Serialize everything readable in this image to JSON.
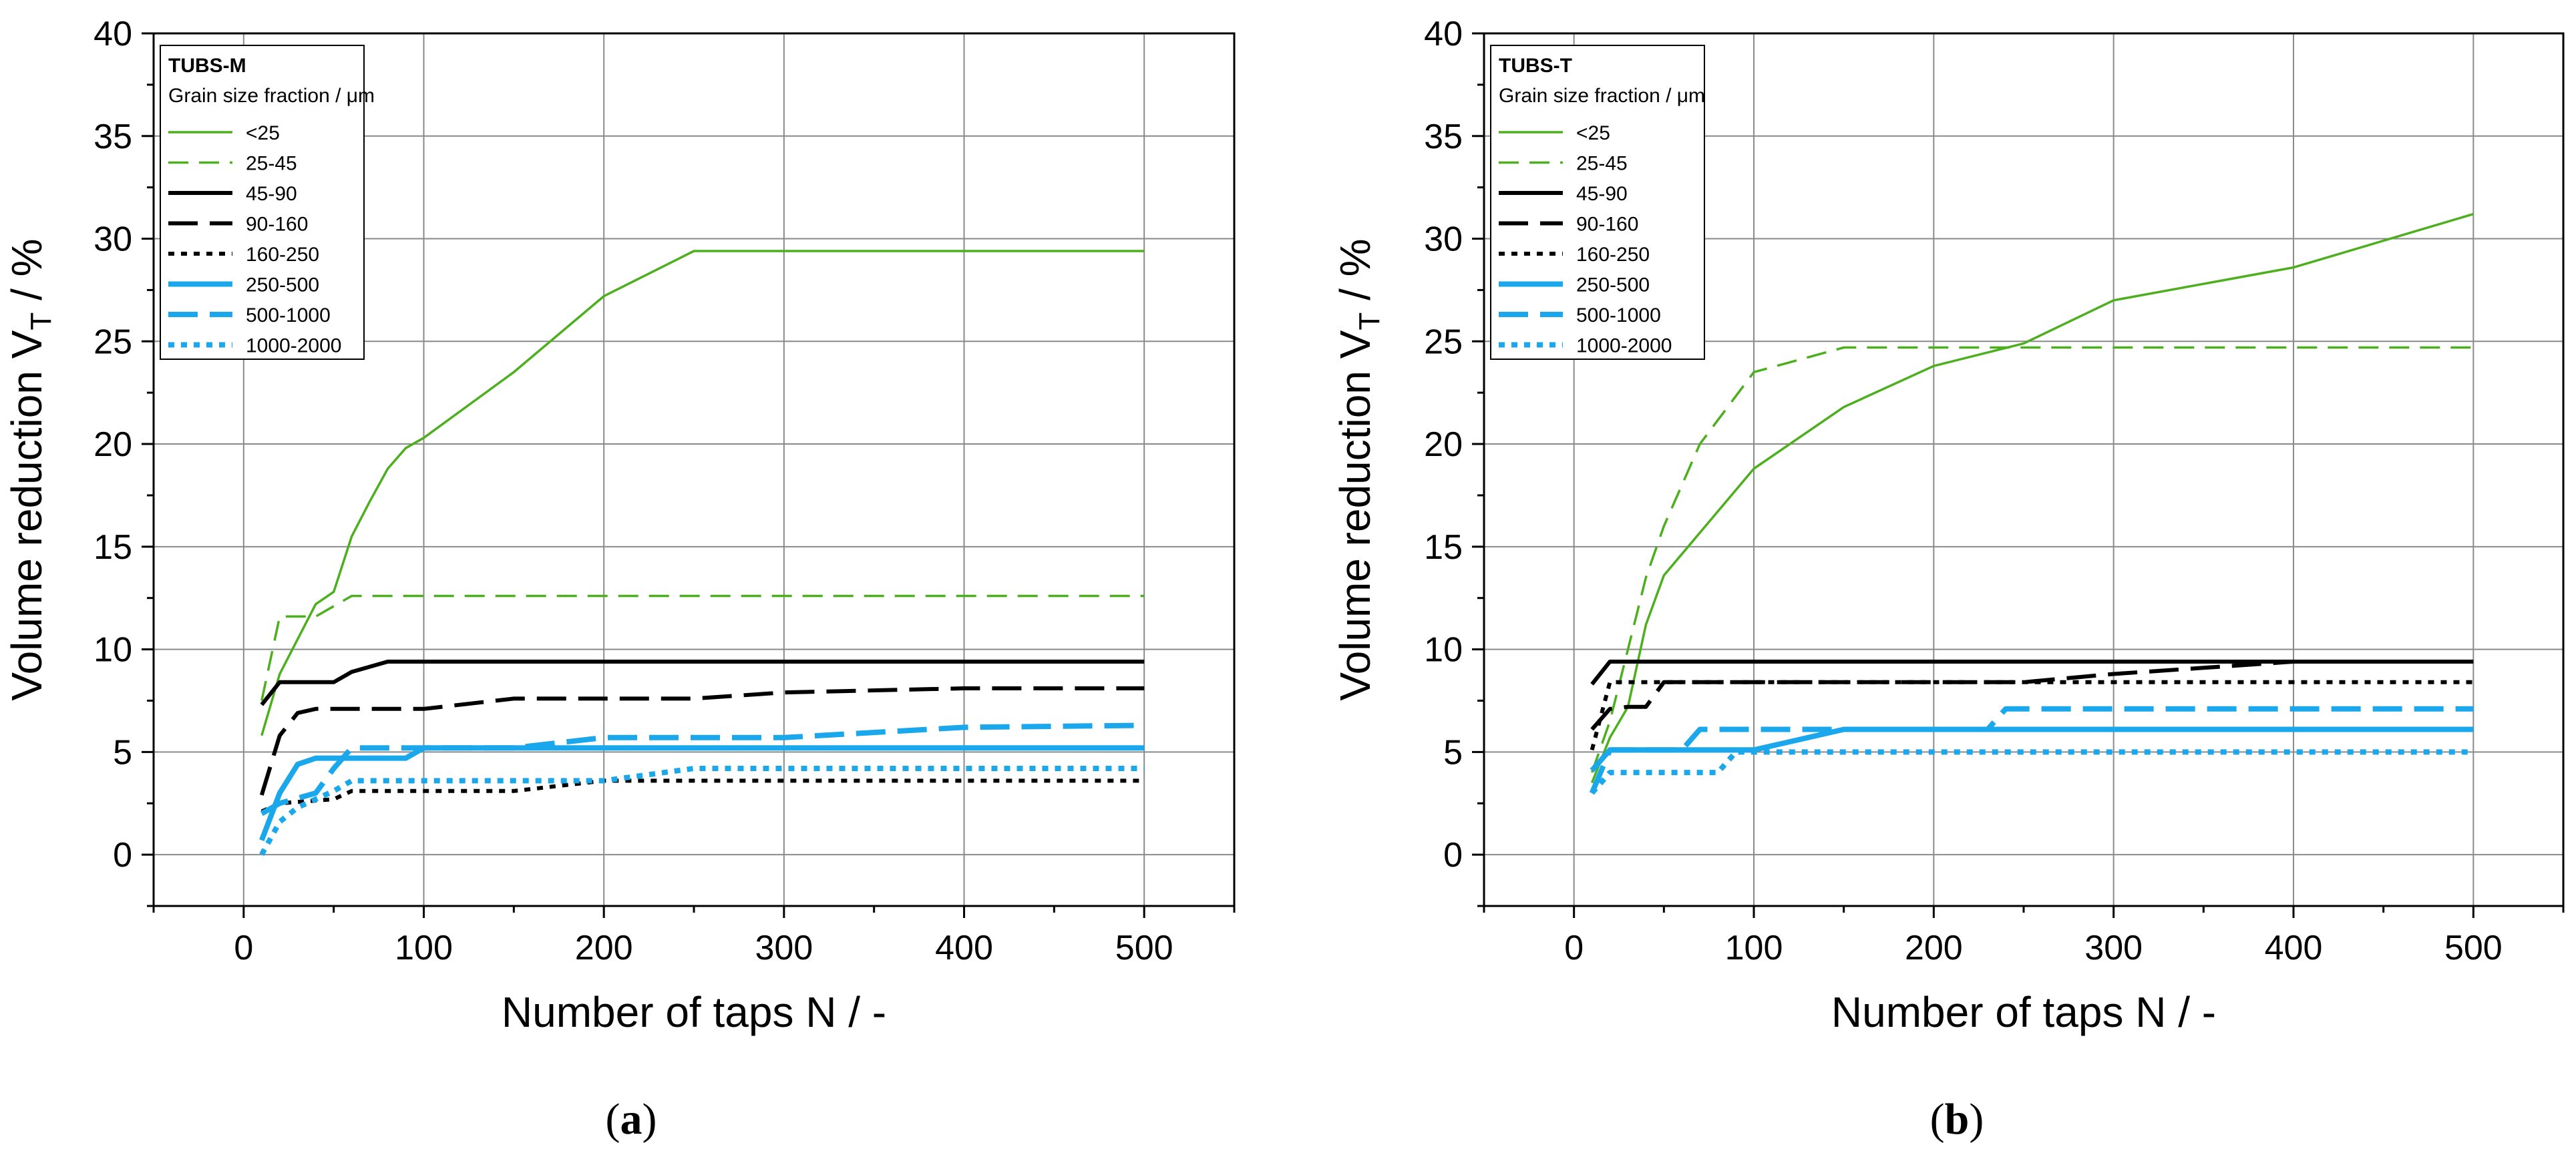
{
  "chart_data": [
    {
      "type": "line",
      "panel_label": "a",
      "legend_title": "TUBS-M",
      "legend_subtitle": "Grain size fraction / μm",
      "xlabel": "Number of taps N / -",
      "ylabel_main": "Volume reduction V",
      "ylabel_sub": "T",
      "ylabel_tail": " / %",
      "xlim": [
        -50,
        550
      ],
      "ylim": [
        -2.5,
        40
      ],
      "xticks": [
        0,
        100,
        200,
        300,
        400,
        500
      ],
      "yticks": [
        0,
        5,
        10,
        15,
        20,
        25,
        30,
        35,
        40
      ],
      "grid": true,
      "series": [
        {
          "name": "<25",
          "color": "#4CAF1E",
          "dash": "solid",
          "weight": "thin",
          "x": [
            10,
            20,
            40,
            50,
            60,
            70,
            80,
            90,
            100,
            150,
            200,
            250,
            300,
            400,
            500
          ],
          "y": [
            5.8,
            8.8,
            12.2,
            12.8,
            15.5,
            17.2,
            18.8,
            19.8,
            20.3,
            23.5,
            27.2,
            29.4,
            29.4,
            29.4,
            29.4
          ]
        },
        {
          "name": "25-45",
          "color": "#4CAF1E",
          "dash": "dashed",
          "weight": "thin",
          "x": [
            10,
            20,
            40,
            60,
            100,
            200,
            300,
            400,
            500
          ],
          "y": [
            7.5,
            11.6,
            11.6,
            12.6,
            12.6,
            12.6,
            12.6,
            12.6,
            12.6
          ]
        },
        {
          "name": "45-90",
          "color": "#000000",
          "dash": "solid",
          "weight": "thick",
          "x": [
            10,
            20,
            30,
            40,
            50,
            60,
            80,
            100,
            200,
            300,
            400,
            500
          ],
          "y": [
            7.3,
            8.4,
            8.4,
            8.4,
            8.4,
            8.9,
            9.4,
            9.4,
            9.4,
            9.4,
            9.4,
            9.4
          ]
        },
        {
          "name": "90-160",
          "color": "#000000",
          "dash": "longdash",
          "weight": "thick",
          "x": [
            10,
            20,
            30,
            40,
            60,
            100,
            150,
            200,
            250,
            300,
            400,
            500
          ],
          "y": [
            2.9,
            5.8,
            6.9,
            7.1,
            7.1,
            7.1,
            7.6,
            7.6,
            7.6,
            7.9,
            8.1,
            8.1
          ]
        },
        {
          "name": "160-250",
          "color": "#000000",
          "dash": "dotted",
          "weight": "thick",
          "x": [
            10,
            20,
            50,
            60,
            100,
            150,
            200,
            300,
            400,
            500
          ],
          "y": [
            2.1,
            2.5,
            2.7,
            3.1,
            3.1,
            3.1,
            3.6,
            3.6,
            3.6,
            3.6
          ]
        },
        {
          "name": "250-500",
          "color": "#1BA7EB",
          "dash": "solid",
          "weight": "heavy",
          "x": [
            10,
            20,
            30,
            40,
            50,
            60,
            90,
            100,
            200,
            300,
            400,
            500
          ],
          "y": [
            0.7,
            3.0,
            4.4,
            4.7,
            4.7,
            4.7,
            4.7,
            5.2,
            5.2,
            5.2,
            5.2,
            5.2
          ]
        },
        {
          "name": "500-1000",
          "color": "#1BA7EB",
          "dash": "longdash",
          "weight": "heavy",
          "x": [
            10,
            20,
            40,
            50,
            60,
            80,
            100,
            150,
            200,
            300,
            400,
            500
          ],
          "y": [
            2.0,
            2.5,
            3.0,
            4.2,
            5.2,
            5.2,
            5.2,
            5.2,
            5.7,
            5.7,
            6.2,
            6.3
          ]
        },
        {
          "name": "1000-2000",
          "color": "#1BA7EB",
          "dash": "dotted",
          "weight": "heavy",
          "x": [
            10,
            20,
            30,
            50,
            60,
            100,
            200,
            250,
            300,
            400,
            500
          ],
          "y": [
            0.0,
            1.6,
            2.3,
            3.1,
            3.6,
            3.6,
            3.6,
            4.2,
            4.2,
            4.2,
            4.2
          ]
        }
      ]
    },
    {
      "type": "line",
      "panel_label": "b",
      "legend_title": "TUBS-T",
      "legend_subtitle": "Grain size fraction / μm",
      "xlabel": "Number of taps N / -",
      "ylabel_main": "Volume reduction V",
      "ylabel_sub": "T",
      "ylabel_tail": " / %",
      "xlim": [
        -50,
        550
      ],
      "ylim": [
        -2.5,
        40
      ],
      "xticks": [
        0,
        100,
        200,
        300,
        400,
        500
      ],
      "yticks": [
        0,
        5,
        10,
        15,
        20,
        25,
        30,
        35,
        40
      ],
      "grid": true,
      "series": [
        {
          "name": "<25",
          "color": "#4CAF1E",
          "dash": "solid",
          "weight": "thin",
          "x": [
            10,
            20,
            30,
            40,
            50,
            100,
            150,
            200,
            250,
            300,
            400,
            500
          ],
          "y": [
            3.5,
            5.7,
            7.2,
            11.2,
            13.6,
            18.8,
            21.8,
            23.8,
            24.9,
            27.0,
            28.6,
            31.2
          ]
        },
        {
          "name": "25-45",
          "color": "#4CAF1E",
          "dash": "dashed",
          "weight": "thin",
          "x": [
            10,
            20,
            30,
            40,
            50,
            70,
            100,
            150,
            200,
            300,
            400,
            500
          ],
          "y": [
            4.0,
            6.5,
            10.0,
            13.5,
            16.0,
            20.0,
            23.5,
            24.7,
            24.7,
            24.7,
            24.7,
            24.7
          ]
        },
        {
          "name": "45-90",
          "color": "#000000",
          "dash": "solid",
          "weight": "thick",
          "x": [
            10,
            20,
            100,
            200,
            300,
            400,
            500
          ],
          "y": [
            8.3,
            9.4,
            9.4,
            9.4,
            9.4,
            9.4,
            9.4
          ]
        },
        {
          "name": "90-160",
          "color": "#000000",
          "dash": "longdash",
          "weight": "thick",
          "x": [
            10,
            20,
            30,
            40,
            50,
            100,
            200,
            250,
            300,
            400,
            500
          ],
          "y": [
            6.1,
            7.1,
            7.2,
            7.2,
            8.4,
            8.4,
            8.4,
            8.4,
            8.8,
            9.4,
            9.4
          ]
        },
        {
          "name": "160-250",
          "color": "#000000",
          "dash": "dotted",
          "weight": "thick",
          "x": [
            10,
            20,
            30,
            100,
            200,
            300,
            400,
            500
          ],
          "y": [
            5.1,
            8.4,
            8.4,
            8.4,
            8.4,
            8.4,
            8.4,
            8.4
          ]
        },
        {
          "name": "250-500",
          "color": "#1BA7EB",
          "dash": "solid",
          "weight": "heavy",
          "x": [
            10,
            20,
            90,
            100,
            150,
            200,
            300,
            400,
            500
          ],
          "y": [
            4.1,
            5.1,
            5.1,
            5.1,
            6.1,
            6.1,
            6.1,
            6.1,
            6.1
          ]
        },
        {
          "name": "500-1000",
          "color": "#1BA7EB",
          "dash": "longdash",
          "weight": "heavy",
          "x": [
            10,
            20,
            60,
            70,
            100,
            230,
            240,
            300,
            400,
            500
          ],
          "y": [
            3.0,
            5.1,
            5.1,
            6.1,
            6.1,
            6.1,
            7.1,
            7.1,
            7.1,
            7.1
          ]
        },
        {
          "name": "1000-2000",
          "color": "#1BA7EB",
          "dash": "dotted",
          "weight": "heavy",
          "x": [
            10,
            20,
            80,
            90,
            100,
            200,
            300,
            400,
            500
          ],
          "y": [
            3.0,
            4.0,
            4.0,
            5.0,
            5.0,
            5.0,
            5.0,
            5.0,
            5.0
          ]
        }
      ]
    }
  ]
}
